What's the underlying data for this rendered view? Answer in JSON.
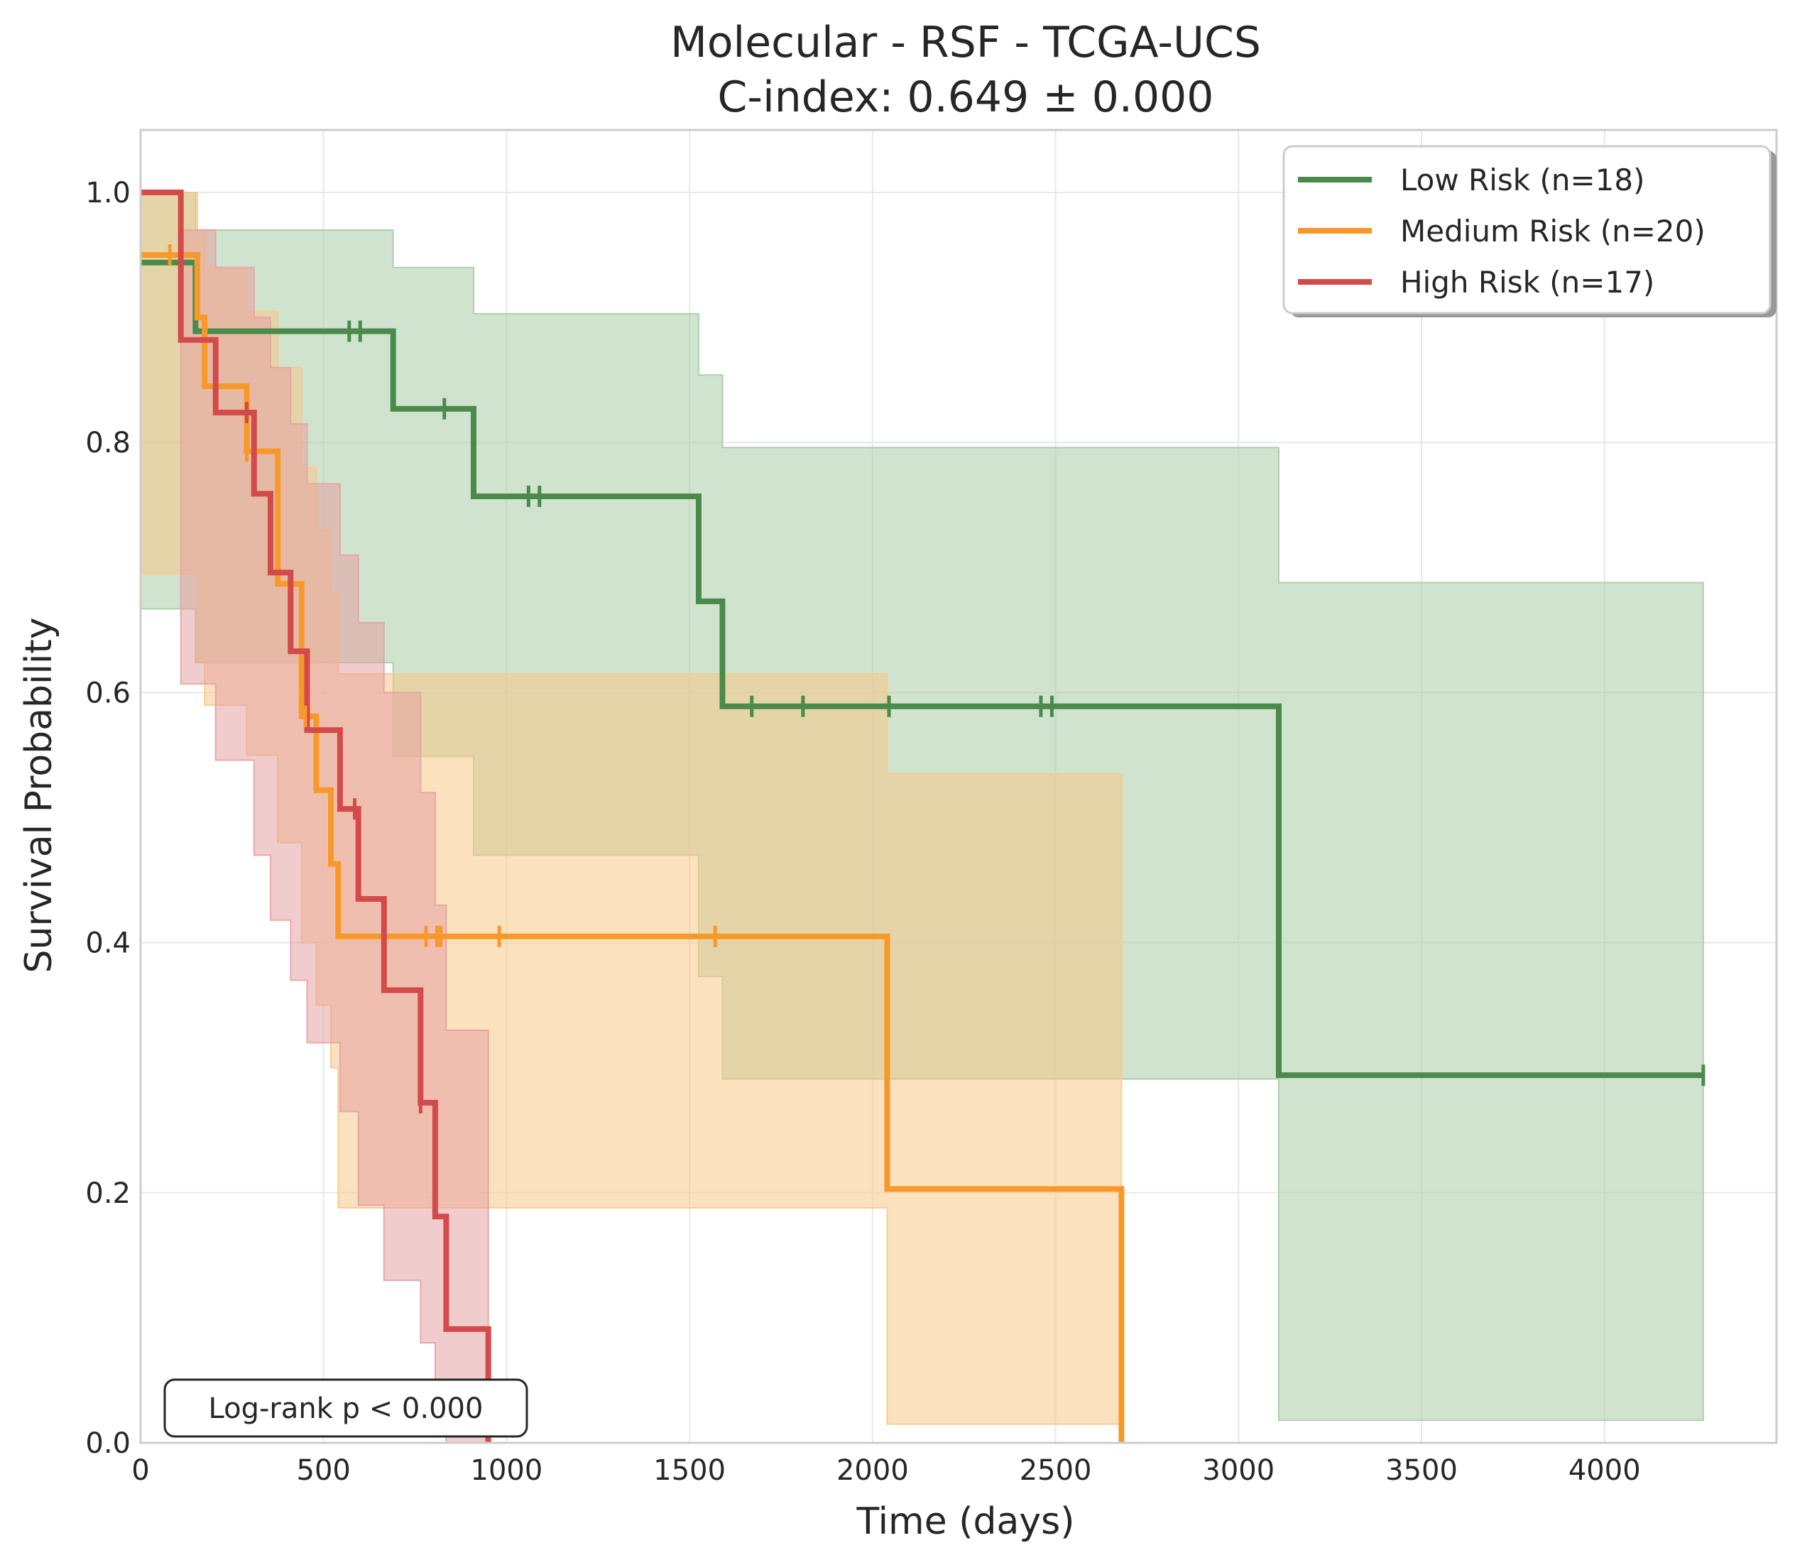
{
  "chart_data": {
    "type": "line",
    "subtype": "kaplan-meier",
    "title": "Molecular - RSF - TCGA-UCS",
    "subtitle": "C-index: 0.649 ± 0.000",
    "xlabel": "Time (days)",
    "ylabel": "Survival Probability",
    "xlim": [
      0,
      4470
    ],
    "ylim": [
      0,
      1.05
    ],
    "x_ticks": [
      0,
      500,
      1000,
      1500,
      2000,
      2500,
      3000,
      3500,
      4000
    ],
    "y_ticks": [
      0.0,
      0.2,
      0.4,
      0.6,
      0.8,
      1.0
    ],
    "x_tick_labels": [
      "0",
      "500",
      "1000",
      "1500",
      "2000",
      "2500",
      "3000",
      "3500",
      "4000"
    ],
    "y_tick_labels": [
      "0.0",
      "0.2",
      "0.4",
      "0.6",
      "0.8",
      "1.0"
    ],
    "grid": true,
    "legend_position": "top-right",
    "annotation": "Log-rank p < 0.000",
    "series": [
      {
        "name": "Low Risk (n=18)",
        "color": "#4a8a4a",
        "band_color": "#a8cca8",
        "x": [
          0,
          150,
          690,
          910,
          1525,
          1590,
          3110,
          4270
        ],
        "y": [
          0.944,
          0.889,
          0.827,
          0.757,
          0.673,
          0.589,
          0.294,
          0.294
        ],
        "ci_upper": [
          1.0,
          0.97,
          0.94,
          0.903,
          0.854,
          0.796,
          0.688,
          0.688
        ],
        "ci_lower": [
          0.667,
          0.624,
          0.549,
          0.47,
          0.373,
          0.291,
          0.018,
          0.018
        ],
        "censored_x": [
          570,
          600,
          830,
          1060,
          1090,
          1670,
          1810,
          2045,
          2460,
          2490,
          4270
        ]
      },
      {
        "name": "Medium Risk (n=20)",
        "color": "#f7992a",
        "band_color": "#f9c98a",
        "x": [
          0,
          155,
          175,
          290,
          375,
          440,
          480,
          520,
          540,
          2040,
          2680
        ],
        "y": [
          0.95,
          0.9,
          0.845,
          0.793,
          0.687,
          0.581,
          0.522,
          0.463,
          0.405,
          0.203,
          0.0
        ],
        "ci_upper": [
          1.0,
          0.97,
          0.94,
          0.905,
          0.86,
          0.78,
          0.73,
          0.68,
          0.615,
          0.535,
          0.535
        ],
        "ci_lower": [
          0.695,
          0.625,
          0.59,
          0.55,
          0.48,
          0.4,
          0.35,
          0.3,
          0.188,
          0.015,
          0.015
        ],
        "censored_x": [
          80,
          290,
          450,
          780,
          810,
          820,
          980,
          1570
        ]
      },
      {
        "name": "High Risk (n=17)",
        "color": "#d34a4a",
        "band_color": "#e5a3a3",
        "x": [
          0,
          110,
          205,
          310,
          355,
          410,
          455,
          545,
          595,
          665,
          765,
          805,
          835,
          950
        ],
        "y": [
          1.0,
          0.882,
          0.824,
          0.759,
          0.696,
          0.633,
          0.57,
          0.507,
          0.435,
          0.362,
          0.272,
          0.181,
          0.091,
          0.0
        ],
        "ci_upper": [
          1.0,
          0.97,
          0.94,
          0.9,
          0.86,
          0.815,
          0.767,
          0.71,
          0.656,
          0.6,
          0.52,
          0.43,
          0.33,
          0.33
        ],
        "ci_lower": [
          1.0,
          0.607,
          0.546,
          0.47,
          0.418,
          0.37,
          0.32,
          0.265,
          0.19,
          0.13,
          0.08,
          0.04,
          0.0,
          0.0
        ],
        "censored_x": [
          290,
          585,
          765
        ]
      }
    ]
  }
}
